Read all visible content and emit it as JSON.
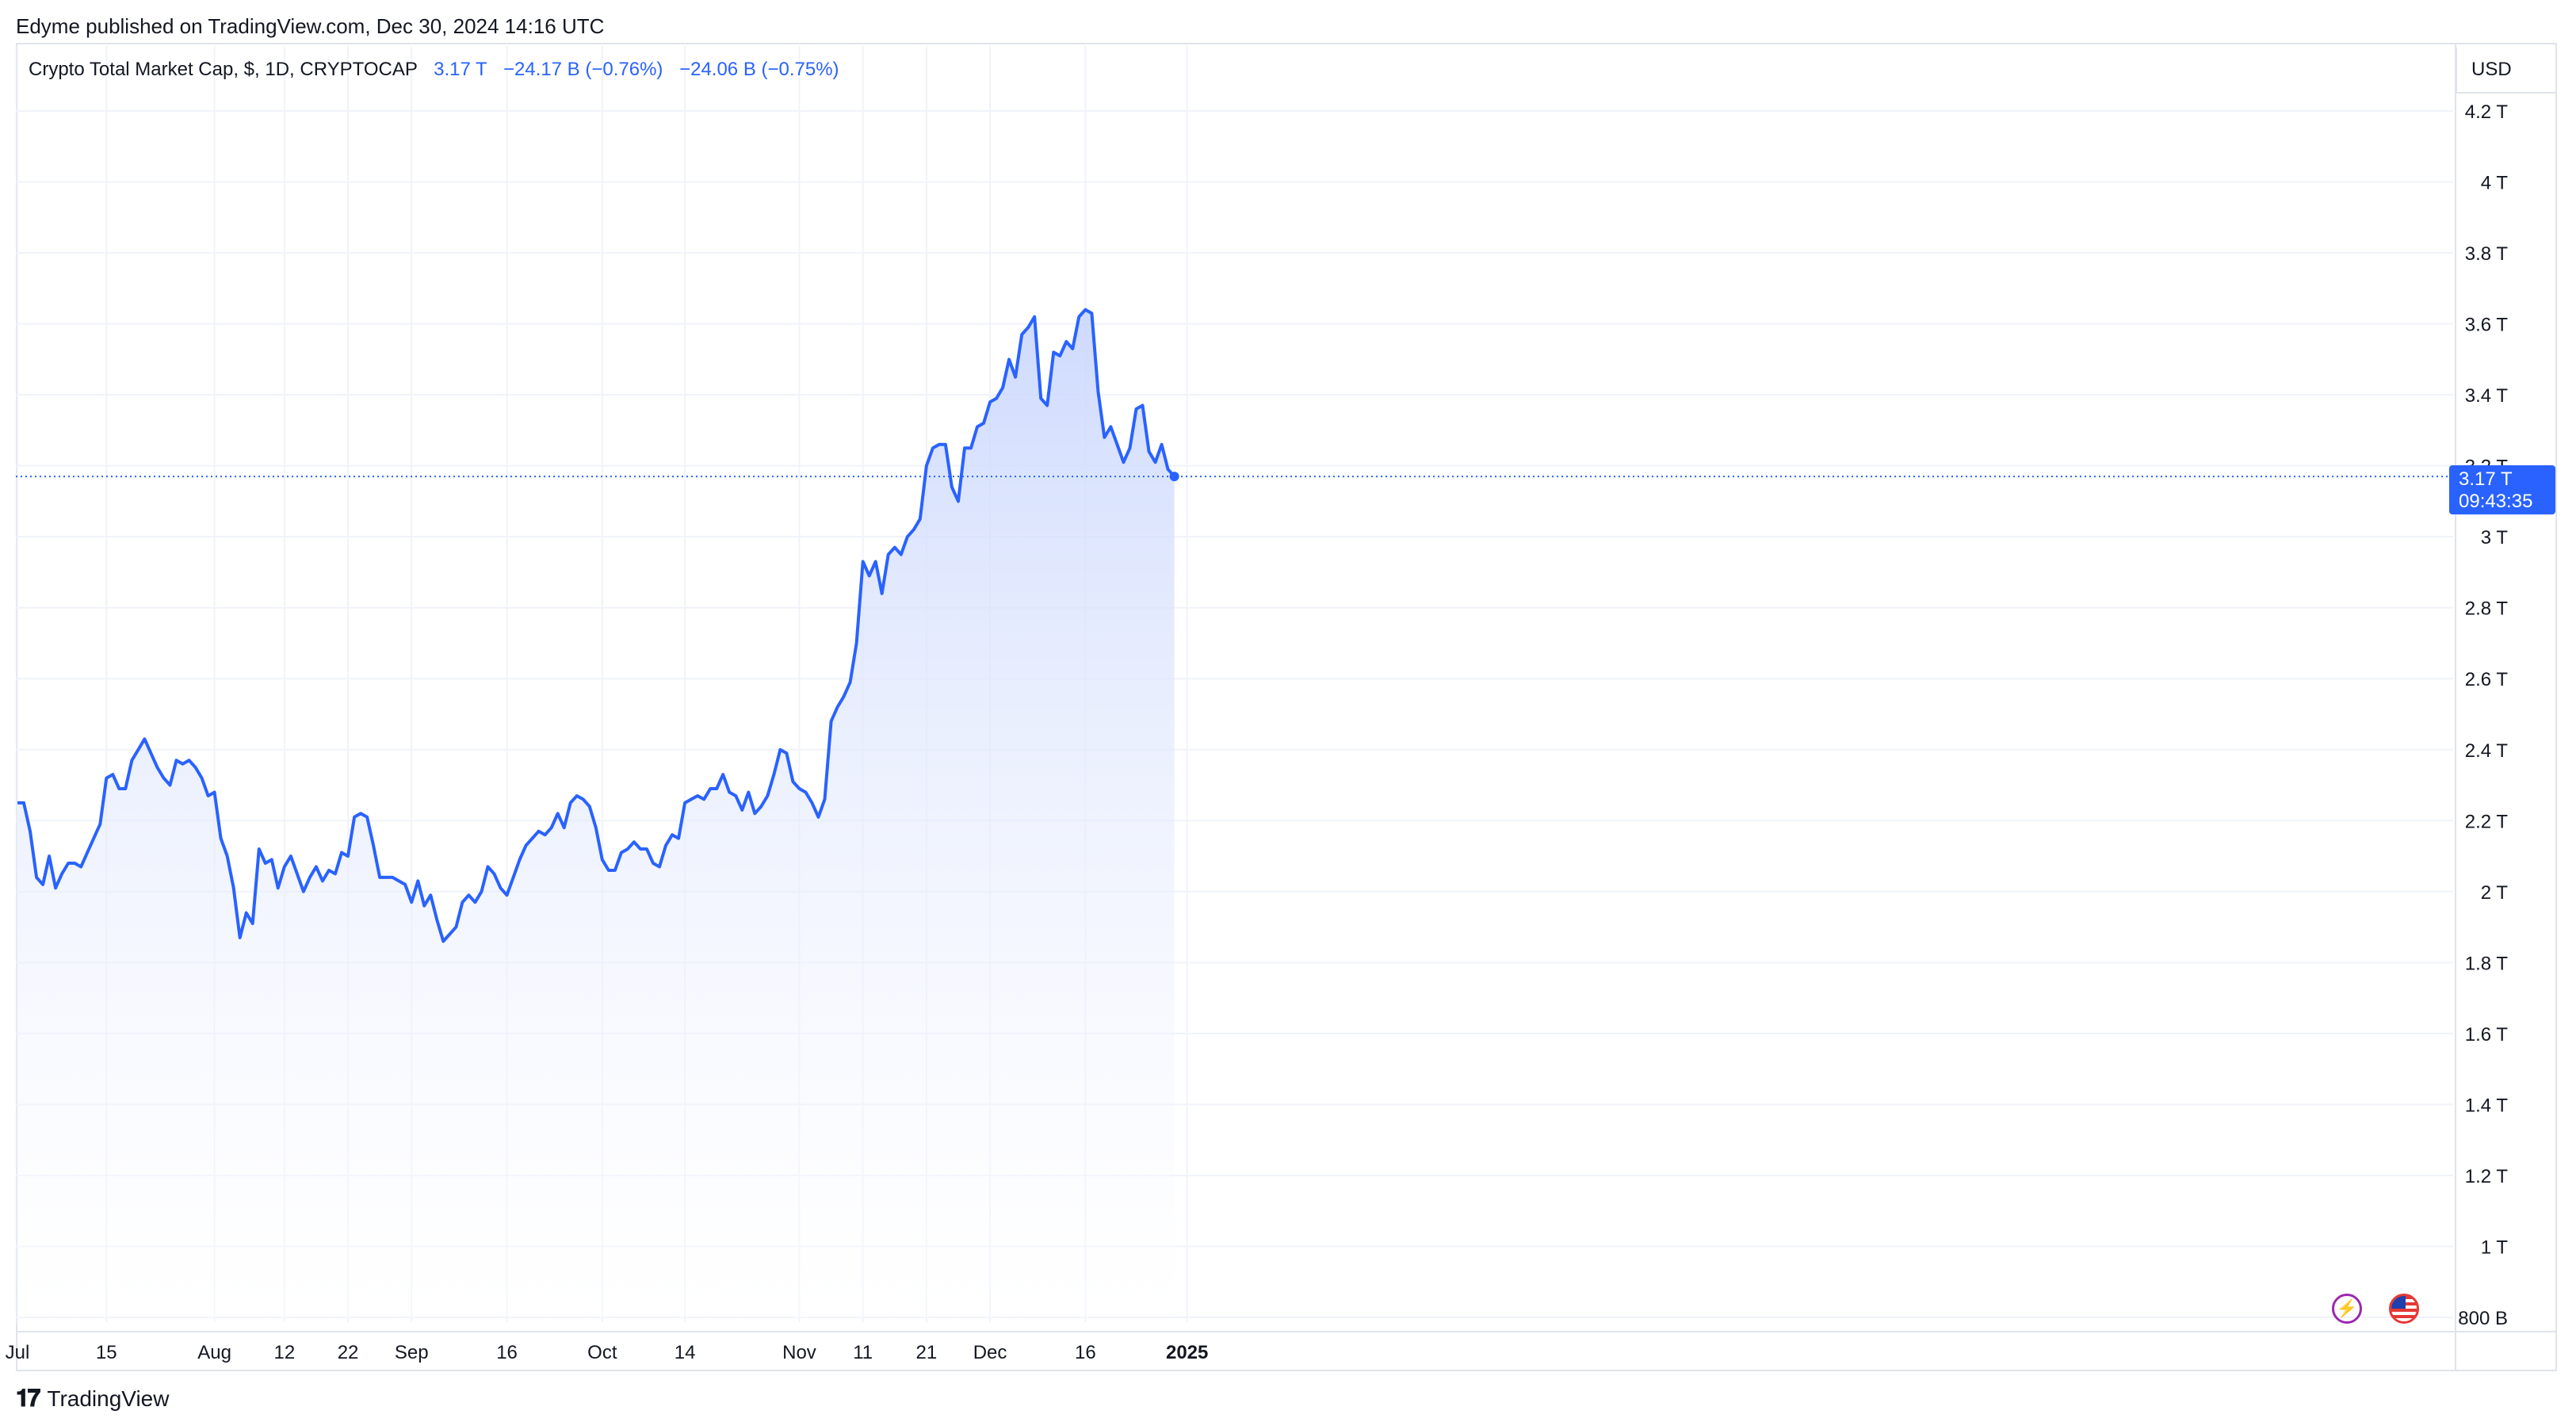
{
  "header": {
    "published": "Edyme published on TradingView.com, Dec 30, 2024 14:16 UTC"
  },
  "legend": {
    "title": "Crypto Total Market Cap, $, 1D, CRYPTOCAP",
    "last": "3.17 T",
    "change_abs": "−24.17 B (−0.76%)",
    "change_abs2": "−24.06 B (−0.75%)"
  },
  "currency": "USD",
  "price_tag": {
    "value": "3.17 T",
    "countdown": "09:43:35"
  },
  "footer": {
    "brand": "TradingView",
    "logo_icon": "tradingview-logo-icon"
  },
  "icons": {
    "bolt": "lightning-icon",
    "flag": "us-flag-icon"
  },
  "colors": {
    "line": "#2962ff",
    "fill_top": "#c9d6fd",
    "fill_bottom": "#ffffff",
    "grid": "#f0f3fa"
  },
  "chart_data": {
    "type": "area",
    "title": "Crypto Total Market Cap, $, 1D, CRYPTOCAP",
    "xlabel": "",
    "ylabel": "",
    "ylim": [
      800,
      4300
    ],
    "y_unit": "B USD",
    "yticks": [
      800,
      1000,
      1200,
      1400,
      1600,
      1800,
      2000,
      2200,
      2400,
      2600,
      2800,
      3000,
      3200,
      3400,
      3600,
      3800,
      4000,
      4200
    ],
    "ytick_labels": [
      "800 B",
      "1 T",
      "1.2 T",
      "1.4 T",
      "1.6 T",
      "1.8 T",
      "2 T",
      "2.2 T",
      "2.4 T",
      "2.6 T",
      "2.8 T",
      "3 T",
      "3.2 T",
      "3.4 T",
      "3.6 T",
      "3.8 T",
      "4 T",
      "4.2 T"
    ],
    "xticks": [
      {
        "label": "Jul",
        "date": "2024-07-01"
      },
      {
        "label": "15",
        "date": "2024-07-15"
      },
      {
        "label": "Aug",
        "date": "2024-08-01"
      },
      {
        "label": "12",
        "date": "2024-08-12"
      },
      {
        "label": "22",
        "date": "2024-08-22"
      },
      {
        "label": "Sep",
        "date": "2024-09-01"
      },
      {
        "label": "16",
        "date": "2024-09-16"
      },
      {
        "label": "Oct",
        "date": "2024-10-01"
      },
      {
        "label": "14",
        "date": "2024-10-14"
      },
      {
        "label": "Nov",
        "date": "2024-11-01"
      },
      {
        "label": "11",
        "date": "2024-11-11"
      },
      {
        "label": "21",
        "date": "2024-11-21"
      },
      {
        "label": "Dec",
        "date": "2024-12-01"
      },
      {
        "label": "16",
        "date": "2024-12-16"
      },
      {
        "label": "2025",
        "date": "2025-01-01"
      }
    ],
    "last_value": 3170,
    "grid": true,
    "series": [
      {
        "start_date": "2024-07-01",
        "step_days": 1,
        "values": [
          2250,
          2250,
          2170,
          2040,
          2020,
          2100,
          2010,
          2050,
          2080,
          2080,
          2070,
          2110,
          2150,
          2190,
          2320,
          2330,
          2290,
          2290,
          2370,
          2400,
          2430,
          2390,
          2350,
          2320,
          2300,
          2370,
          2360,
          2370,
          2350,
          2320,
          2270,
          2280,
          2150,
          2100,
          2010,
          1870,
          1940,
          1910,
          2120,
          2080,
          2090,
          2010,
          2070,
          2100,
          2050,
          2000,
          2040,
          2070,
          2030,
          2060,
          2050,
          2110,
          2100,
          2210,
          2220,
          2210,
          2130,
          2040,
          2040,
          2040,
          2030,
          2020,
          1970,
          2030,
          1960,
          1990,
          1920,
          1860,
          1880,
          1900,
          1970,
          1990,
          1970,
          2000,
          2070,
          2050,
          2010,
          1990,
          2040,
          2090,
          2130,
          2150,
          2170,
          2160,
          2180,
          2220,
          2180,
          2250,
          2270,
          2260,
          2240,
          2180,
          2090,
          2060,
          2060,
          2110,
          2120,
          2140,
          2120,
          2120,
          2080,
          2070,
          2130,
          2160,
          2150,
          2250,
          2260,
          2270,
          2260,
          2290,
          2290,
          2330,
          2280,
          2270,
          2230,
          2280,
          2220,
          2240,
          2270,
          2330,
          2400,
          2390,
          2310,
          2290,
          2280,
          2250,
          2210,
          2260,
          2480,
          2520,
          2550,
          2590,
          2700,
          2930,
          2890,
          2930,
          2840,
          2950,
          2970,
          2950,
          3000,
          3020,
          3050,
          3200,
          3250,
          3260,
          3260,
          3140,
          3100,
          3250,
          3250,
          3310,
          3320,
          3380,
          3390,
          3420,
          3500,
          3450,
          3570,
          3590,
          3620,
          3390,
          3370,
          3520,
          3510,
          3550,
          3530,
          3620,
          3640,
          3630,
          3410,
          3280,
          3310,
          3260,
          3210,
          3250,
          3360,
          3370,
          3240,
          3210,
          3260,
          3190,
          3170
        ]
      }
    ]
  }
}
